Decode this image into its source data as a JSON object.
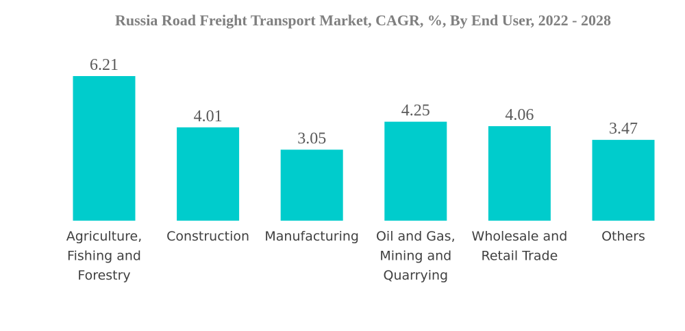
{
  "chart_data": {
    "type": "bar",
    "title": "Russia Road Freight Transport Market, CAGR, %, By End User, 2022 - 2028",
    "xlabel": "",
    "ylabel": "",
    "categories": [
      [
        "Agriculture,",
        "Fishing and",
        "Forestry"
      ],
      [
        "Construction"
      ],
      [
        "Manufacturing"
      ],
      [
        "Oil and Gas,",
        "Mining and",
        "Quarrying"
      ],
      [
        "Wholesale and",
        "Retail Trade"
      ],
      [
        "Others"
      ]
    ],
    "values": [
      6.21,
      4.01,
      3.05,
      4.25,
      4.06,
      3.47
    ],
    "value_labels": [
      "6.21",
      "4.01",
      "3.05",
      "4.25",
      "4.06",
      "3.47"
    ],
    "ylim": [
      0,
      6.21
    ],
    "grid": false,
    "legend": "none",
    "bar_color": "#00cccc"
  }
}
